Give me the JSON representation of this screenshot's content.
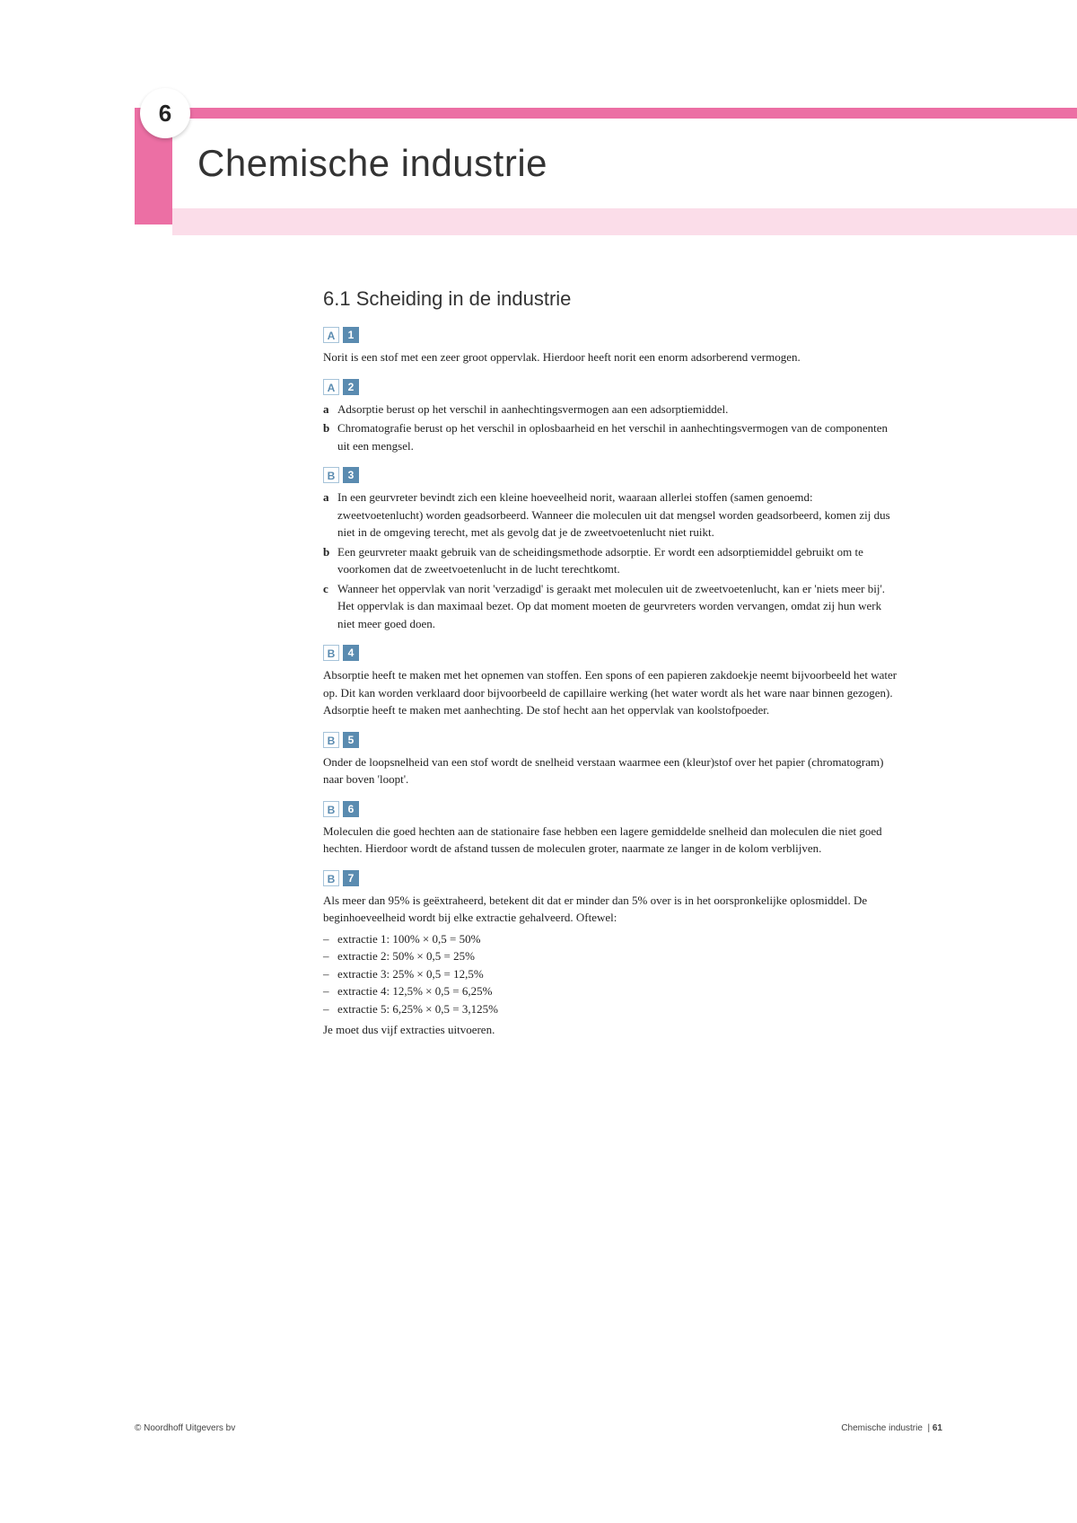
{
  "chapter_number": "6",
  "chapter_title": "Chemische industrie",
  "section_title": "6.1 Scheiding in de industrie",
  "blocks": [
    {
      "letter": "A",
      "num": "1",
      "paras": [
        "Norit is een stof met een zeer groot oppervlak. Hierdoor heeft norit een enorm adsorberend vermogen."
      ]
    },
    {
      "letter": "A",
      "num": "2",
      "subs": [
        {
          "l": "a",
          "t": "Adsorptie berust op het verschil in aanhechtingsvermogen aan een adsorptiemiddel."
        },
        {
          "l": "b",
          "t": "Chromatografie berust op het verschil in oplosbaarheid en het verschil in aanhechtingsvermogen van de componenten uit een mengsel."
        }
      ]
    },
    {
      "letter": "B",
      "num": "3",
      "subs": [
        {
          "l": "a",
          "t": "In een geurvreter bevindt zich een kleine hoeveelheid norit, waaraan allerlei stoffen (samen genoemd: zweetvoetenlucht) worden geadsorbeerd. Wanneer die moleculen uit dat mengsel worden geadsorbeerd, komen zij dus niet in de omgeving terecht, met als gevolg dat je de zweetvoetenlucht niet ruikt."
        },
        {
          "l": "b",
          "t": "Een geurvreter maakt gebruik van de scheidingsmethode adsorptie. Er wordt een adsorptiemiddel gebruikt om te voorkomen dat de zweetvoetenlucht in de lucht terechtkomt."
        },
        {
          "l": "c",
          "t": "Wanneer het oppervlak van norit 'verzadigd' is geraakt met moleculen uit de zweetvoetenlucht, kan er 'niets meer bij'. Het oppervlak is dan maximaal bezet. Op dat moment moeten de geurvreters worden vervangen, omdat zij hun werk niet meer goed doen."
        }
      ]
    },
    {
      "letter": "B",
      "num": "4",
      "paras": [
        "Absorptie heeft te maken met het opnemen van stoffen. Een spons of een papieren zakdoekje neemt bijvoorbeeld het water op. Dit kan worden verklaard door bijvoorbeeld de capillaire werking (het water wordt als het ware naar binnen gezogen). Adsorptie heeft te maken met aanhechting. De stof hecht aan het oppervlak van koolstofpoeder."
      ]
    },
    {
      "letter": "B",
      "num": "5",
      "paras": [
        "Onder de loopsnelheid van een stof wordt de snelheid verstaan waarmee een (kleur)stof over het papier (chromatogram) naar boven 'loopt'."
      ]
    },
    {
      "letter": "B",
      "num": "6",
      "paras": [
        "Moleculen die goed hechten aan de stationaire fase hebben een lagere gemiddelde snelheid dan moleculen die niet goed hechten. Hierdoor wordt de afstand tussen de moleculen groter, naarmate ze langer in de kolom verblijven."
      ]
    },
    {
      "letter": "B",
      "num": "7",
      "paras": [
        "Als meer dan 95% is geëxtraheerd, betekent dit dat er minder dan 5% over is in het oorspronkelijke oplosmiddel. De beginhoeveelheid wordt bij elke extractie gehalveerd. Oftewel:"
      ],
      "dashes": [
        "extractie 1:  100% × 0,5 = 50%",
        "extractie 2:  50% × 0,5 = 25%",
        "extractie 3:  25% × 0,5 = 12,5%",
        "extractie 4:  12,5% × 0,5 = 6,25%",
        "extractie 5:  6,25% × 0,5 = 3,125%"
      ],
      "tail": "Je moet dus vijf extracties uitvoeren."
    }
  ],
  "footer_left": "© Noordhoff Uitgevers bv",
  "footer_right_label": "Chemische industrie",
  "footer_page": "61"
}
